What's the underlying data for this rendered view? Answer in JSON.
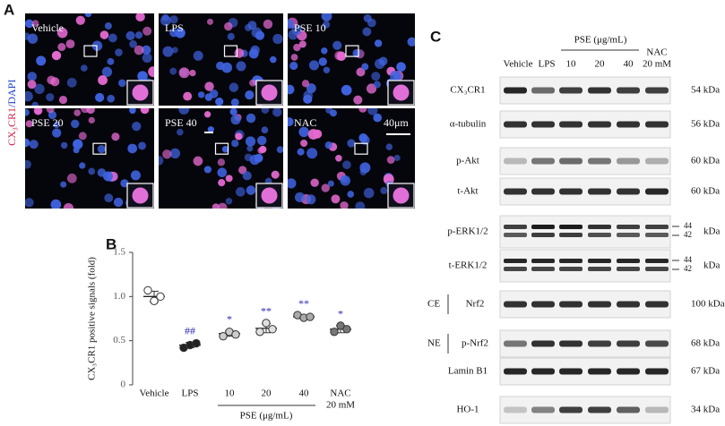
{
  "panel_a": {
    "letter": "A",
    "stain_label": "CX₃CR1",
    "stain_label_2": "/DAPI",
    "images": [
      "Vehicle",
      "LPS",
      "PSE 10",
      "PSE 20",
      "PSE 40",
      "NAC"
    ],
    "scale_bar": "40μm"
  },
  "chart_data": {
    "type": "scatter",
    "letter": "B",
    "y_label": "CX₃CR1 positive signals (fold)",
    "categories": [
      "Vehicle",
      "LPS",
      "10",
      "20",
      "40",
      "NAC"
    ],
    "category_note": "20 mM",
    "group_label": "PSE (μg/mL)",
    "values": [
      [
        1.07,
        0.95,
        1.0
      ],
      [
        0.42,
        0.45,
        0.47
      ],
      [
        0.55,
        0.6,
        0.57
      ],
      [
        0.6,
        0.7,
        0.63
      ],
      [
        0.79,
        0.76,
        0.77
      ],
      [
        0.6,
        0.67,
        0.63
      ]
    ],
    "means": [
      1.0,
      0.45,
      0.58,
      0.64,
      0.77,
      0.63
    ],
    "errors": [
      0.06,
      0.03,
      0.03,
      0.05,
      0.02,
      0.04
    ],
    "point_colors": [
      "#ffffff",
      "#222222",
      "#cccccc",
      "#e0e0e0",
      "#aaaaaa",
      "#777777"
    ],
    "significance": [
      null,
      "##",
      "*",
      "**",
      "**",
      "*"
    ],
    "significance_color": "#2a2ab5",
    "ylim": [
      0,
      1.5
    ],
    "yticks": [
      0,
      0.5,
      {
        "value": 1,
        "label": "1.0"
      },
      1.5
    ]
  },
  "panel_c": {
    "letter": "C",
    "group_label": "PSE (μg/mL)",
    "lanes": [
      "Vehicle",
      "LPS",
      "10",
      "20",
      "40",
      "NAC"
    ],
    "lane_note": "20 mM",
    "rows": [
      {
        "label": "CX₃CR1",
        "size": "54 kDa"
      },
      {
        "label": "α-tubulin",
        "size": "56 kDa"
      },
      {
        "label": "p-Akt",
        "size": "60 kDa"
      },
      {
        "label": "t-Akt",
        "size": "60 kDa"
      },
      {
        "label": "p-ERK1/2",
        "size_top": "44",
        "size_bottom": "42",
        "size": "kDa"
      },
      {
        "label": "t-ERK1/2",
        "size_top": "44",
        "size_bottom": "42",
        "size": "kDa"
      },
      {
        "fraction": "CE",
        "label": "Nrf2",
        "size": "100 kDa"
      },
      {
        "fraction": "NE",
        "label": "p-Nrf2",
        "size": "68 kDa"
      },
      {
        "label": "Lamin B1",
        "size": "67 kDa"
      },
      {
        "label": "HO-1",
        "size": "34 kDa"
      }
    ]
  }
}
